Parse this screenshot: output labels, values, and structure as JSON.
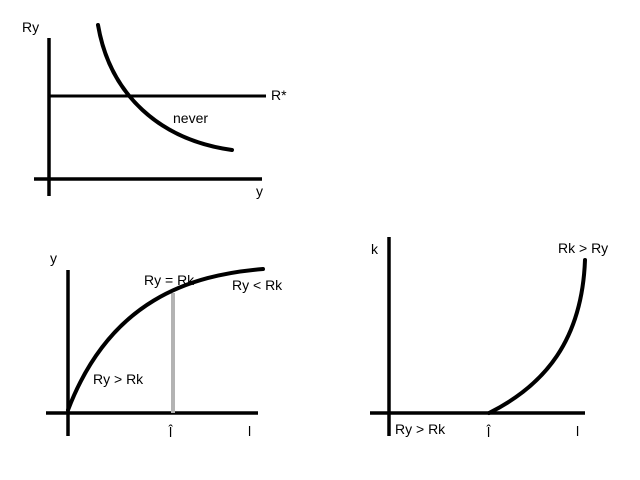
{
  "top_panel": {
    "y_axis_label": "Ry",
    "x_axis_label": "y",
    "line_label": "R*",
    "region_label": "never"
  },
  "left_panel": {
    "y_axis_label": "y",
    "x_axis_label": "l",
    "marker_label": "l̂",
    "equal_label": "Ry = Rk",
    "below_label": "Ry > Rk",
    "above_label": "Ry < Rk"
  },
  "right_panel": {
    "y_axis_label": "k",
    "x_axis_label": "l",
    "marker_label": "l̂",
    "flat_label": "Ry > Rk",
    "curve_label": "Rk > Ry"
  }
}
